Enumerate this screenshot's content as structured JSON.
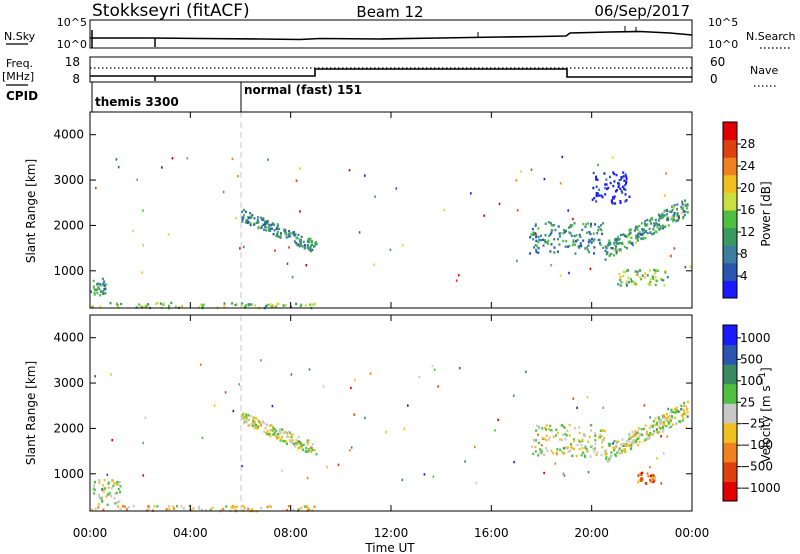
{
  "header": {
    "station": "Stokkseyri (fitACF)",
    "beam": "Beam 12",
    "date": "06/Sep/2017"
  },
  "noise_panel": {
    "left_label": "N.Sky",
    "right_label": "N.Search",
    "ticks": [
      "10^5",
      "10^0"
    ]
  },
  "freq_panel": {
    "left_label_1": "Freq.",
    "left_label_2": "[MHz]",
    "left_ticks": [
      18,
      8
    ],
    "right_label": "Nave",
    "right_ticks": [
      60,
      0
    ]
  },
  "cpid": {
    "label": "CPID",
    "modes": [
      {
        "name": "themis 3300",
        "start_hour": 0
      },
      {
        "name": "normal (fast) 151",
        "start_hour": 6
      }
    ]
  },
  "colors": {
    "power_scale": [
      "#1a1aff",
      "#2a55b0",
      "#3b7ea0",
      "#3a9a60",
      "#4fbf40",
      "#c8e040",
      "#f0c020",
      "#f08020",
      "#e04010",
      "#e00000"
    ],
    "velocity_scale": [
      "#1a1aff",
      "#2a55b0",
      "#3a8a60",
      "#4fc040",
      "#c8c8c8",
      "#f0c020",
      "#f08020",
      "#e04010",
      "#e00000"
    ]
  },
  "chart_data": [
    {
      "type": "heatmap",
      "panel": "power",
      "ylabel": "Slant Range [km]",
      "x_range_hours": [
        0,
        24
      ],
      "ylim": [
        180,
        4500
      ],
      "y_ticks": [
        1000,
        2000,
        3000,
        4000
      ],
      "colorbar": {
        "label": "Power [dB]",
        "ticks": [
          4,
          8,
          12,
          16,
          20,
          24,
          28
        ],
        "range": [
          0,
          32
        ]
      },
      "clusters": [
        {
          "t0": 0.0,
          "t1": 0.6,
          "r0": 450,
          "r1": 850,
          "level": 0.35
        },
        {
          "t0": 0.0,
          "t1": 9.0,
          "r0": 200,
          "r1": 320,
          "level": 0.45
        },
        {
          "t0": 6.0,
          "t1": 9.0,
          "r0": 1500,
          "r1": 2300,
          "level": 0.3,
          "slope": -0.24
        },
        {
          "t0": 17.5,
          "t1": 20.5,
          "r0": 1400,
          "r1": 2100,
          "level": 0.3
        },
        {
          "t0": 20.5,
          "t1": 23.8,
          "r0": 1400,
          "r1": 2500,
          "level": 0.35,
          "slope": 0.3
        },
        {
          "t0": 20.0,
          "t1": 21.5,
          "r0": 2500,
          "r1": 3200,
          "level": 0.05
        },
        {
          "t0": 21.0,
          "t1": 23.0,
          "r0": 700,
          "r1": 1050,
          "level": 0.45
        }
      ]
    },
    {
      "type": "heatmap",
      "panel": "velocity",
      "ylabel": "Slant Range [km]",
      "xlabel": "Time UT",
      "x_range_hours": [
        0,
        24
      ],
      "x_ticks": [
        "00:00",
        "04:00",
        "08:00",
        "12:00",
        "16:00",
        "20:00",
        "00:00"
      ],
      "ylim": [
        180,
        4500
      ],
      "y_ticks": [
        1000,
        2000,
        3000,
        4000
      ],
      "colorbar": {
        "label": "Velocity [m s^-1]",
        "ticks": [
          "1000",
          "500",
          "100",
          "25",
          "−25",
          "−100",
          "−500",
          "−1000"
        ]
      },
      "clusters": [
        {
          "t0": 0.0,
          "t1": 1.2,
          "r0": 300,
          "r1": 900,
          "level": 0.5
        },
        {
          "t0": 0.0,
          "t1": 9.0,
          "r0": 200,
          "r1": 320,
          "level": 0.6
        },
        {
          "t0": 6.0,
          "t1": 9.0,
          "r0": 1500,
          "r1": 2300,
          "level": 0.5,
          "slope": -0.24
        },
        {
          "t0": 17.5,
          "t1": 20.5,
          "r0": 1400,
          "r1": 2100,
          "level": 0.5
        },
        {
          "t0": 20.5,
          "t1": 23.8,
          "r0": 1400,
          "r1": 2500,
          "level": 0.5,
          "slope": 0.3
        },
        {
          "t0": 21.8,
          "t1": 22.5,
          "r0": 800,
          "r1": 1050,
          "level": 0.8
        }
      ]
    }
  ]
}
